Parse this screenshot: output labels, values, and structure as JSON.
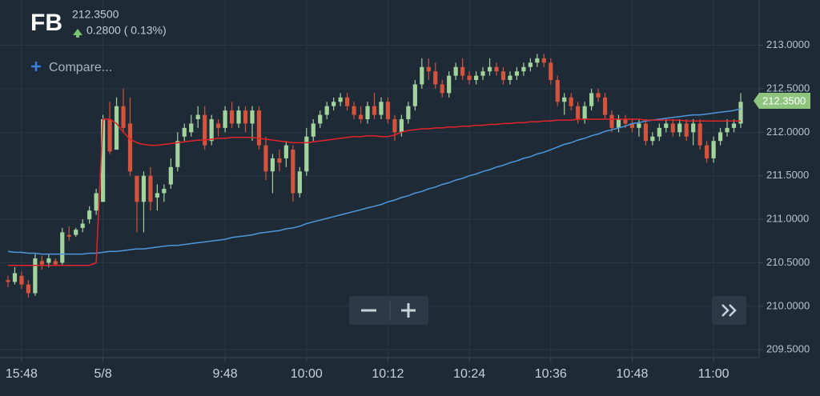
{
  "header": {
    "symbol": "FB",
    "price": "212.3500",
    "change": "0.2800 ( 0.13%)",
    "compare": "Compare..."
  },
  "chart_data": {
    "type": "candlestick",
    "up_color": "#a3d39c",
    "down_color": "#d4533c",
    "ylim": [
      209.41,
      213.52
    ],
    "yticks": [
      {
        "value": 209.5,
        "label": "209.5000"
      },
      {
        "value": 210,
        "label": "210.0000"
      },
      {
        "value": 210.5,
        "label": "210.5000"
      },
      {
        "value": 211,
        "label": "211.0000"
      },
      {
        "value": 211.5,
        "label": "211.5000"
      },
      {
        "value": 212,
        "label": "212.0000"
      },
      {
        "value": 212.5,
        "label": "212.5000"
      },
      {
        "value": 213,
        "label": "213.0000"
      }
    ],
    "grid": true,
    "categories": [
      null,
      null,
      "15:48",
      null,
      null,
      null,
      null,
      null,
      null,
      null,
      null,
      null,
      null,
      null,
      "5/8",
      null,
      null,
      null,
      null,
      null,
      null,
      null,
      null,
      null,
      null,
      null,
      null,
      null,
      null,
      null,
      null,
      null,
      "9:48",
      null,
      null,
      null,
      null,
      null,
      null,
      null,
      null,
      null,
      null,
      null,
      "10:00",
      null,
      null,
      null,
      null,
      null,
      null,
      null,
      null,
      null,
      null,
      null,
      "10:12",
      null,
      null,
      null,
      null,
      null,
      null,
      null,
      null,
      null,
      null,
      null,
      "10:24",
      null,
      null,
      null,
      null,
      null,
      null,
      null,
      null,
      null,
      null,
      null,
      "10:36",
      null,
      null,
      null,
      null,
      null,
      null,
      null,
      null,
      null,
      null,
      null,
      "10:48",
      null,
      null,
      null,
      null,
      null,
      null,
      null,
      null,
      null,
      null,
      null,
      "11:00",
      null,
      null,
      null,
      null
    ],
    "open": [
      210.3,
      210.28,
      210.35,
      210.25,
      210.15,
      210.52,
      210.5,
      210.52,
      210.5,
      210.82,
      210.82,
      210.9,
      211.0,
      211.1,
      211.2,
      212.15,
      211.8,
      212.3,
      212.1,
      211.5,
      211.2,
      211.5,
      211.25,
      211.3,
      211.4,
      211.6,
      211.95,
      212.0,
      212.15,
      212.2,
      211.9,
      212.1,
      212.05,
      212.25,
      212.1,
      212.25,
      212.1,
      212.25,
      211.85,
      211.55,
      211.7,
      211.7,
      211.8,
      211.3,
      211.55,
      211.95,
      212.1,
      212.2,
      212.3,
      212.35,
      212.4,
      212.3,
      212.2,
      212.15,
      212.3,
      212.2,
      212.35,
      212.15,
      212.0,
      212.15,
      212.3,
      212.55,
      212.75,
      212.7,
      212.55,
      212.45,
      212.65,
      212.75,
      212.65,
      212.6,
      212.65,
      212.7,
      212.75,
      212.7,
      212.6,
      212.65,
      212.7,
      212.75,
      212.8,
      212.85,
      212.8,
      212.6,
      212.35,
      212.4,
      212.3,
      212.15,
      212.3,
      212.45,
      212.4,
      212.2,
      212.05,
      212.15,
      212.1,
      212.05,
      212.1,
      211.9,
      211.95,
      212.05,
      212.1,
      212.0,
      212.1,
      212.0,
      212.1,
      211.85,
      211.7,
      211.9,
      212.0,
      212.05,
      212.1
    ],
    "high": [
      210.35,
      210.45,
      210.4,
      210.3,
      210.6,
      210.58,
      210.6,
      210.55,
      210.9,
      210.92,
      210.9,
      211.0,
      211.15,
      211.35,
      212.2,
      212.35,
      212.4,
      212.5,
      212.4,
      211.5,
      211.55,
      211.6,
      211.4,
      211.4,
      211.7,
      212.0,
      212.1,
      212.2,
      212.3,
      212.3,
      212.2,
      212.15,
      212.3,
      212.35,
      212.3,
      212.3,
      212.3,
      212.3,
      211.95,
      211.75,
      211.8,
      211.9,
      211.85,
      211.6,
      212.05,
      212.15,
      212.25,
      212.35,
      212.4,
      212.45,
      212.45,
      212.35,
      212.3,
      212.35,
      212.45,
      212.4,
      212.4,
      212.2,
      212.2,
      212.35,
      212.6,
      212.85,
      212.85,
      212.8,
      212.6,
      212.7,
      212.8,
      212.85,
      212.7,
      212.7,
      212.75,
      212.85,
      212.8,
      212.75,
      212.7,
      212.75,
      212.8,
      212.85,
      212.9,
      212.9,
      212.85,
      212.65,
      212.45,
      212.45,
      212.35,
      212.35,
      212.5,
      212.5,
      212.45,
      212.25,
      212.2,
      212.2,
      212.15,
      212.15,
      212.15,
      212.0,
      212.1,
      212.15,
      212.15,
      212.15,
      212.15,
      212.15,
      212.15,
      211.9,
      211.95,
      212.05,
      212.15,
      212.15,
      212.45
    ],
    "low": [
      210.22,
      210.25,
      210.2,
      210.1,
      210.12,
      210.42,
      210.45,
      210.46,
      210.48,
      210.75,
      210.8,
      210.85,
      210.95,
      211.05,
      211.2,
      211.75,
      211.8,
      212.0,
      211.5,
      210.85,
      210.85,
      211.1,
      211.1,
      211.2,
      211.35,
      211.55,
      211.9,
      211.95,
      212.05,
      211.8,
      211.85,
      211.95,
      212.0,
      212.05,
      212.05,
      212.0,
      211.9,
      211.8,
      211.45,
      211.3,
      211.55,
      211.6,
      211.2,
      211.25,
      211.5,
      211.9,
      212.05,
      212.15,
      212.25,
      212.3,
      212.25,
      212.15,
      212.1,
      212.1,
      212.15,
      212.15,
      212.1,
      211.9,
      211.95,
      212.1,
      212.25,
      212.5,
      212.6,
      212.5,
      212.4,
      212.4,
      212.6,
      212.6,
      212.55,
      212.55,
      212.6,
      212.65,
      212.65,
      212.55,
      212.55,
      212.6,
      212.65,
      212.7,
      212.75,
      212.75,
      212.55,
      212.3,
      212.2,
      212.25,
      212.1,
      212.1,
      212.25,
      212.35,
      212.15,
      212.0,
      212.0,
      212.05,
      212.0,
      211.95,
      211.85,
      211.85,
      211.9,
      212.0,
      211.95,
      211.95,
      211.9,
      211.85,
      211.8,
      211.65,
      211.65,
      211.85,
      211.95,
      212.0,
      212.05
    ],
    "close": [
      210.28,
      210.38,
      210.25,
      210.15,
      210.55,
      210.48,
      210.55,
      210.48,
      210.85,
      210.8,
      210.88,
      210.95,
      211.1,
      211.3,
      212.15,
      211.78,
      212.3,
      212.05,
      211.55,
      211.2,
      211.5,
      211.2,
      211.3,
      211.35,
      211.6,
      211.9,
      212.05,
      212.1,
      212.2,
      211.85,
      212.15,
      212.05,
      212.25,
      212.1,
      212.25,
      212.1,
      212.25,
      211.85,
      211.55,
      211.7,
      211.65,
      211.85,
      211.3,
      211.55,
      211.95,
      212.1,
      212.2,
      212.3,
      212.35,
      212.4,
      212.3,
      212.2,
      212.15,
      212.3,
      212.2,
      212.35,
      212.15,
      212.0,
      212.15,
      212.3,
      212.55,
      212.75,
      212.7,
      212.55,
      212.45,
      212.65,
      212.75,
      212.65,
      212.6,
      212.65,
      212.7,
      212.75,
      212.7,
      212.6,
      212.65,
      212.7,
      212.75,
      212.8,
      212.85,
      212.8,
      212.6,
      212.35,
      212.4,
      212.3,
      212.15,
      212.3,
      212.45,
      212.4,
      212.2,
      212.05,
      212.15,
      212.1,
      212.05,
      212.1,
      211.9,
      211.95,
      212.05,
      212.1,
      212.0,
      212.1,
      211.95,
      212.1,
      211.85,
      211.7,
      211.9,
      212.0,
      212.05,
      212.1,
      212.35
    ],
    "lines": [
      {
        "color": "#4f97dc",
        "values": [
          210.63,
          210.62,
          210.62,
          210.61,
          210.61,
          210.6,
          210.6,
          210.6,
          210.6,
          210.6,
          210.6,
          210.6,
          210.61,
          210.61,
          210.62,
          210.63,
          210.63,
          210.64,
          210.65,
          210.66,
          210.66,
          210.67,
          210.68,
          210.69,
          210.7,
          210.7,
          210.71,
          210.72,
          210.73,
          210.74,
          210.75,
          210.76,
          210.77,
          210.79,
          210.8,
          210.81,
          210.82,
          210.84,
          210.85,
          210.86,
          210.87,
          210.89,
          210.9,
          210.92,
          210.95,
          210.97,
          210.99,
          211.01,
          211.03,
          211.05,
          211.07,
          211.09,
          211.11,
          211.13,
          211.15,
          211.17,
          211.2,
          211.22,
          211.25,
          211.27,
          211.3,
          211.32,
          211.35,
          211.37,
          211.4,
          211.42,
          211.45,
          211.47,
          211.5,
          211.52,
          211.55,
          211.57,
          211.6,
          211.62,
          211.65,
          211.67,
          211.7,
          211.72,
          211.75,
          211.77,
          211.8,
          211.83,
          211.86,
          211.88,
          211.91,
          211.93,
          211.96,
          211.98,
          212.01,
          212.03,
          212.05,
          212.07,
          212.1,
          212.11,
          212.13,
          212.14,
          212.15,
          212.16,
          212.17,
          212.18,
          212.19,
          212.2,
          212.2,
          212.21,
          212.22,
          212.23,
          212.24,
          212.25,
          212.27
        ]
      },
      {
        "color": "#e3242b",
        "values": [
          210.47,
          210.47,
          210.47,
          210.47,
          210.47,
          210.47,
          210.47,
          210.47,
          210.47,
          210.47,
          210.47,
          210.47,
          210.47,
          210.5,
          212.15,
          212.15,
          212.1,
          212.0,
          211.92,
          211.88,
          211.86,
          211.85,
          211.85,
          211.86,
          211.87,
          211.88,
          211.89,
          211.9,
          211.91,
          211.91,
          211.92,
          211.93,
          211.93,
          211.94,
          211.94,
          211.94,
          211.94,
          211.93,
          211.92,
          211.91,
          211.9,
          211.89,
          211.88,
          211.88,
          211.88,
          211.89,
          211.9,
          211.91,
          211.92,
          211.93,
          211.94,
          211.95,
          211.95,
          211.96,
          211.96,
          211.95,
          211.95,
          211.97,
          212.0,
          212.02,
          212.03,
          212.04,
          212.04,
          212.05,
          212.05,
          212.06,
          212.06,
          212.07,
          212.07,
          212.08,
          212.08,
          212.09,
          212.09,
          212.1,
          212.1,
          212.11,
          212.11,
          212.12,
          212.12,
          212.13,
          212.13,
          212.14,
          212.14,
          212.14,
          212.15,
          212.15,
          212.15,
          212.15,
          212.15,
          212.15,
          212.15,
          212.15,
          212.15,
          212.15,
          212.14,
          212.14,
          212.14,
          212.14,
          212.14,
          212.14,
          212.13,
          212.13,
          212.13,
          212.13,
          212.13,
          212.13,
          212.13,
          212.13,
          212.13
        ]
      }
    ]
  }
}
